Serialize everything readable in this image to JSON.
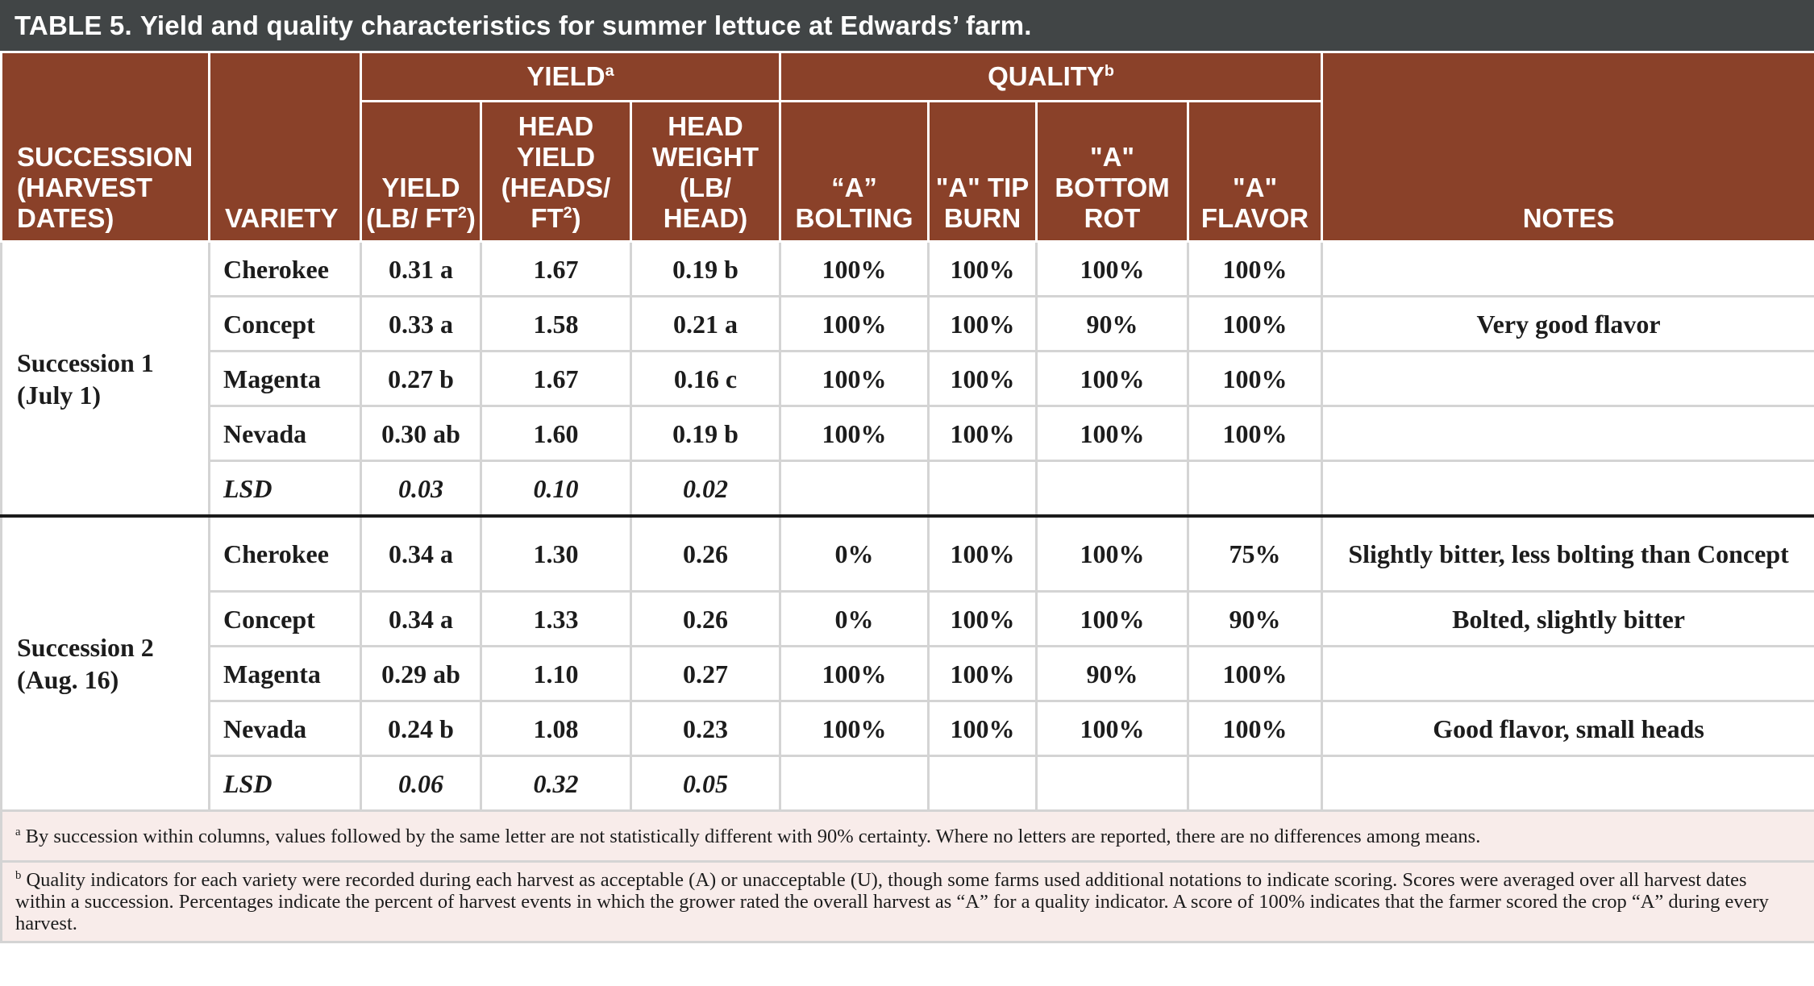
{
  "table": {
    "title_lead": "TABLE 5.",
    "title_rest": "Yield and quality characteristics for summer lettuce at Edwards’ farm.",
    "header": {
      "succession": "SUCCESSION (HARVEST DATES)",
      "variety": "VARIETY",
      "yield_group": "YIELD",
      "yield_group_note": "a",
      "quality_group": "QUALITY",
      "quality_group_note": "b",
      "notes": "NOTES",
      "cols": {
        "yield_a": "YIELD (LB/",
        "yield_b": "FT",
        "yield_c": ")",
        "head_yield_a": "HEAD YIELD (HEADS/",
        "head_yield_b": "FT",
        "head_yield_c": ")",
        "head_weight": "HEAD WEIGHT (LB/ HEAD)",
        "bolting": "“A” BOLTING",
        "tip_burn": "\"A\" TIP BURN",
        "bottom_rot": "\"A\" BOTTOM ROT",
        "flavor": "\"A\" FLAVOR",
        "exponent": "2"
      }
    },
    "successions": [
      {
        "name": "Succession 1",
        "dates": "(July 1)",
        "rows": [
          {
            "variety": "Cherokee",
            "yield": "0.31 a",
            "head_yield": "1.67",
            "head_weight": "0.19 b",
            "bolting": "100%",
            "tip_burn": "100%",
            "bottom_rot": "100%",
            "flavor": "100%",
            "notes": ""
          },
          {
            "variety": "Concept",
            "yield": "0.33 a",
            "head_yield": "1.58",
            "head_weight": "0.21 a",
            "bolting": "100%",
            "tip_burn": "100%",
            "bottom_rot": "90%",
            "flavor": "100%",
            "notes": "Very good flavor"
          },
          {
            "variety": "Magenta",
            "yield": "0.27 b",
            "head_yield": "1.67",
            "head_weight": "0.16 c",
            "bolting": "100%",
            "tip_burn": "100%",
            "bottom_rot": "100%",
            "flavor": "100%",
            "notes": ""
          },
          {
            "variety": "Nevada",
            "yield": "0.30 ab",
            "head_yield": "1.60",
            "head_weight": "0.19 b",
            "bolting": "100%",
            "tip_burn": "100%",
            "bottom_rot": "100%",
            "flavor": "100%",
            "notes": ""
          }
        ],
        "lsd": {
          "label": "LSD",
          "yield": "0.03",
          "head_yield": "0.10",
          "head_weight": "0.02"
        }
      },
      {
        "name": "Succession 2",
        "dates": "(Aug. 16)",
        "rows": [
          {
            "variety": "Cherokee",
            "yield": "0.34 a",
            "head_yield": "1.30",
            "head_weight": "0.26",
            "bolting": "0%",
            "tip_burn": "100%",
            "bottom_rot": "100%",
            "flavor": "75%",
            "notes": "Slightly bitter, less bolting than Concept"
          },
          {
            "variety": "Concept",
            "yield": "0.34 a",
            "head_yield": "1.33",
            "head_weight": "0.26",
            "bolting": "0%",
            "tip_burn": "100%",
            "bottom_rot": "100%",
            "flavor": "90%",
            "notes": "Bolted, slightly bitter"
          },
          {
            "variety": "Magenta",
            "yield": "0.29 ab",
            "head_yield": "1.10",
            "head_weight": "0.27",
            "bolting": "100%",
            "tip_burn": "100%",
            "bottom_rot": "90%",
            "flavor": "100%",
            "notes": ""
          },
          {
            "variety": "Nevada",
            "yield": "0.24 b",
            "head_yield": "1.08",
            "head_weight": "0.23",
            "bolting": "100%",
            "tip_burn": "100%",
            "bottom_rot": "100%",
            "flavor": "100%",
            "notes": "Good flavor, small heads"
          }
        ],
        "lsd": {
          "label": "LSD",
          "yield": "0.06",
          "head_yield": "0.32",
          "head_weight": "0.05"
        }
      }
    ],
    "footnotes": [
      {
        "mark": "a",
        "text": "By succession within columns, values followed by the same letter are not statistically different with 90% certainty. Where no letters are reported, there are no differences among means."
      },
      {
        "mark": "b",
        "text": "Quality indicators for each variety were recorded during each harvest as acceptable (A) or unacceptable (U), though some farms used additional notations to indicate scoring.  Scores were averaged over all harvest dates within a succession. Percentages indicate the percent of harvest events in which the grower rated the overall harvest as “A” for a quality indicator. A score of 100% indicates that the farmer scored the crop “A” during every harvest."
      }
    ]
  },
  "colors": {
    "title_bar": "#414546",
    "header_bg": "#8a4129",
    "footnote_bg": "#f8ecea",
    "grid": "#d4d4d4",
    "separator": "#1c1c1c"
  }
}
